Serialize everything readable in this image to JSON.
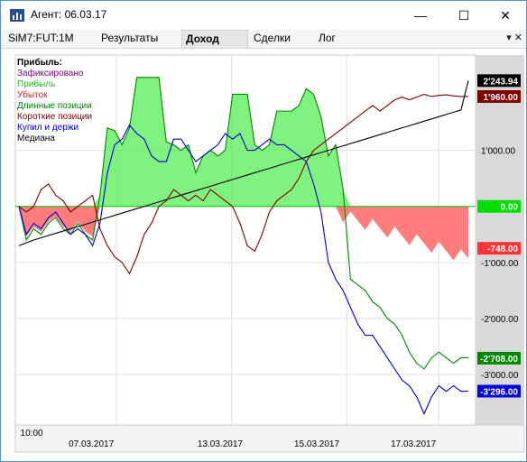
{
  "window": {
    "title": "Агент: 06.03.17",
    "buttons": {
      "minimize": "—",
      "maximize": "☐",
      "close": "✕"
    }
  },
  "tabs": [
    {
      "label": "SiM7:FUT:1M"
    },
    {
      "label": "Результаты"
    },
    {
      "label": "Доход",
      "active": true
    },
    {
      "label": "Сделки"
    },
    {
      "label": "Лог"
    }
  ],
  "tab_tools": "▾ ✕",
  "legend": {
    "title": "Прибыль:",
    "items": [
      {
        "label": "Зафиксировано",
        "color": "#800080"
      },
      {
        "label": "Прибыль",
        "color": "#22bb22"
      },
      {
        "label": "Убыток",
        "color": "#cc2222"
      },
      {
        "label": "Длинные позиции",
        "color": "#008800"
      },
      {
        "label": "Короткие позиции",
        "color": "#800000"
      },
      {
        "label": "Купил и держи",
        "color": "#0000cc"
      },
      {
        "label": "Медиана",
        "color": "#000000"
      }
    ]
  },
  "chart_data": {
    "type": "area",
    "y_ticks": [
      "1'000.00",
      "0.00",
      "-1'000.00",
      "-2'000.00",
      "-3'000.00"
    ],
    "y_tick_values": [
      1000,
      0,
      -1000,
      -2000,
      -3000
    ],
    "ylim": [
      -3900,
      2700
    ],
    "x_tick_labels": [
      "10:00",
      "07.03.2017",
      "13.03.2017",
      "15.03.2017",
      "17.03.2017"
    ],
    "value_markers": [
      {
        "label": "2'243.94",
        "value": 2243.94,
        "bg": "#000000",
        "fg": "#ffffff"
      },
      {
        "label": "1'960.00",
        "value": 1960.0,
        "bg": "#800000",
        "fg": "#ffffff"
      },
      {
        "label": "0.00",
        "value": 0,
        "bg": "#00dd00",
        "fg": "#ffffff"
      },
      {
        "label": "-748.00",
        "value": -748.0,
        "bg": "#ff3333",
        "fg": "#ffffff"
      },
      {
        "label": "-2'708.00",
        "value": -2708.0,
        "bg": "#008800",
        "fg": "#ffffff"
      },
      {
        "label": "-3'296.00",
        "value": -3296.0,
        "bg": "#0000dd",
        "fg": "#ffffff"
      }
    ],
    "series": [
      {
        "name": "Длинные позиции",
        "color": "#008800",
        "values": [
          0,
          -600,
          -400,
          -500,
          -300,
          -200,
          -400,
          -500,
          -300,
          -500,
          -600,
          200,
          1400,
          1350,
          1100,
          1400,
          2300,
          2300,
          2300,
          2300,
          1150,
          1100,
          1000,
          1100,
          600,
          900,
          1000,
          900,
          1000,
          2000,
          2000,
          2000,
          1100,
          1000,
          1100,
          1700,
          1700,
          1700,
          1800,
          2100,
          2000,
          1600,
          900,
          1100,
          300,
          -1300,
          -1400,
          -1500,
          -1700,
          -1800,
          -2000,
          -2100,
          -2300,
          -2600,
          -2800,
          -2900,
          -2700,
          -2600,
          -2700,
          -2800,
          -2700,
          -2700
        ]
      },
      {
        "name": "Купил и держи",
        "color": "#0000cc",
        "values": [
          0,
          -500,
          -300,
          -400,
          -200,
          -100,
          -300,
          -500,
          -400,
          -500,
          -700,
          -300,
          600,
          1100,
          1200,
          1450,
          1300,
          1200,
          900,
          800,
          800,
          1200,
          1200,
          1000,
          800,
          900,
          1000,
          1100,
          1300,
          1200,
          1300,
          1000,
          1000,
          1100,
          1200,
          1100,
          1100,
          1000,
          900,
          800,
          400,
          -100,
          -1000,
          -1300,
          -1500,
          -1800,
          -2100,
          -2300,
          -2300,
          -2500,
          -2700,
          -2900,
          -3100,
          -3200,
          -3400,
          -3700,
          -3400,
          -3200,
          -3300,
          -3200,
          -3300,
          -3296
        ]
      },
      {
        "name": "Короткие позиции",
        "color": "#800000",
        "values": [
          0,
          -100,
          0,
          300,
          400,
          200,
          100,
          -100,
          0,
          100,
          200,
          -400,
          -700,
          -900,
          -1000,
          -1200,
          -900,
          -500,
          -300,
          0,
          100,
          300,
          200,
          100,
          200,
          100,
          300,
          200,
          100,
          0,
          -300,
          -700,
          -800,
          -500,
          -100,
          100,
          200,
          300,
          500,
          800,
          1000,
          1100,
          1200,
          1300,
          1400,
          1500,
          1600,
          1700,
          1800,
          1700,
          1800,
          1900,
          1950,
          1900,
          1950,
          2000,
          1960,
          1980,
          1990,
          1970,
          1960,
          1960
        ]
      },
      {
        "name": "Медиана",
        "color": "#000000",
        "values": [
          -700,
          -650,
          -600,
          -560,
          -520,
          -480,
          -440,
          -400,
          -360,
          -320,
          -280,
          -240,
          -200,
          -160,
          -120,
          -80,
          -40,
          0,
          40,
          80,
          120,
          160,
          200,
          240,
          280,
          320,
          360,
          400,
          440,
          480,
          520,
          560,
          600,
          640,
          680,
          720,
          760,
          800,
          840,
          880,
          920,
          960,
          1000,
          1040,
          1080,
          1120,
          1160,
          1200,
          1240,
          1280,
          1320,
          1360,
          1400,
          1440,
          1480,
          1520,
          1560,
          1600,
          1640,
          1680,
          1720,
          2243.94
        ]
      }
    ]
  }
}
